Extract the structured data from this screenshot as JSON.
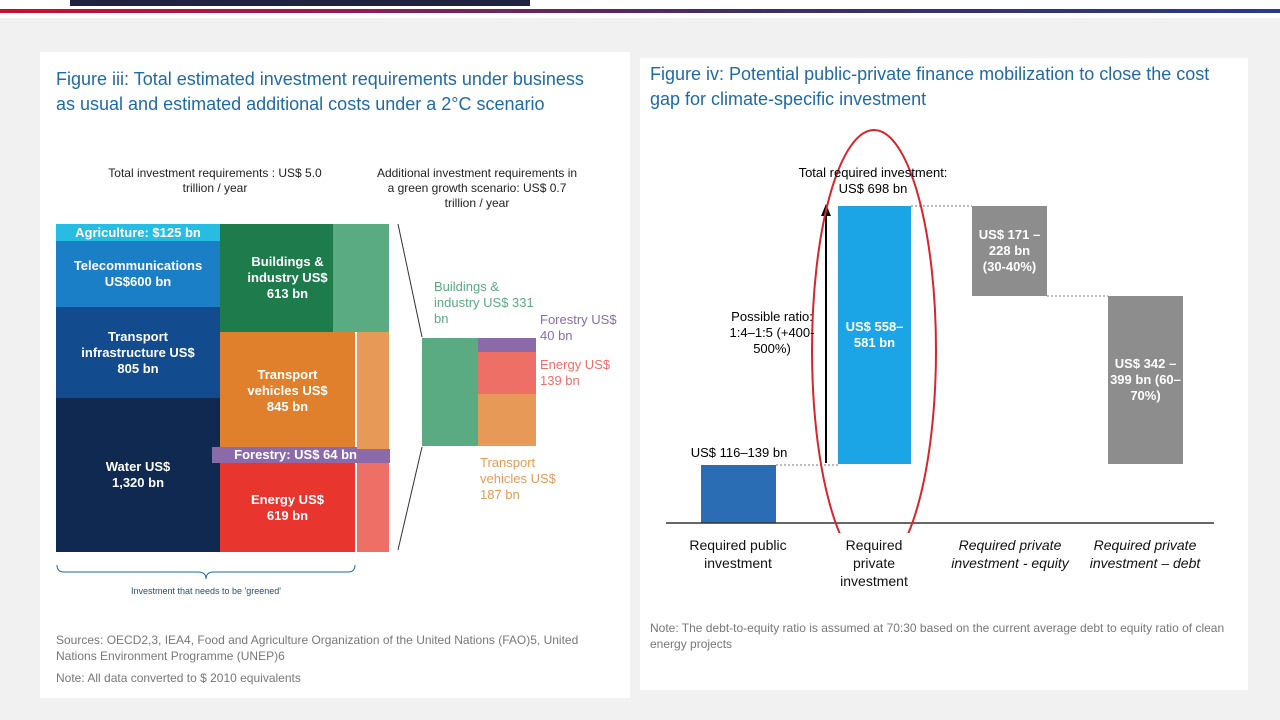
{
  "colors": {
    "title_blue": "#1f6aa6",
    "agriculture": "#27bde3",
    "telecom": "#1a7fc7",
    "transport_infra": "#124b8e",
    "water": "#0f2950",
    "buildings": "#1e7c4c",
    "transport_vehicles": "#e07f2c",
    "forestry": "#8b6aaa",
    "energy": "#e8352e",
    "green_light": "#5aaa82",
    "vehicles_light": "#e79a57",
    "energy_light": "#ee6f66",
    "public_blue": "#2a6db5",
    "private_blue": "#1ba5e6",
    "grey": "#8d8d8d",
    "highlight_red": "#d7262b"
  },
  "chart_data": [
    {
      "type": "stacked bar",
      "title": "Figure iii: Total estimated investment requirements under business as usual and estimated additional costs under a 2°C scenario",
      "header_left": "Total investment requirements : US$ 5.0 trillion / year",
      "header_right": "Additional investment requirements in a green growth scenario: US$ 0.7 trillion / year",
      "left_stack": [
        {
          "label": "Agriculture: $125 bn",
          "value": 125
        },
        {
          "label": "Telecommunications US$600 bn",
          "value": 600
        },
        {
          "label": "Transport infrastructure US$ 805 bn",
          "value": 805
        },
        {
          "label": "Water US$ 1,320 bn",
          "value": 1320
        }
      ],
      "middle_stack": [
        {
          "label": "Buildings & industry US$ 613 bn",
          "value": 613
        },
        {
          "label": "Transport vehicles US$ 845 bn",
          "value": 845
        },
        {
          "label": "Forestry: US$ 64 bn",
          "value": 64
        },
        {
          "label": "Energy US$ 619 bn",
          "value": 619
        }
      ],
      "additional_stack": [
        {
          "label": "Buildings & industry US$ 331 bn",
          "value": 331
        },
        {
          "label": "Forestry US$ 40 bn",
          "value": 40
        },
        {
          "label": "Energy US$ 139 bn",
          "value": 139
        },
        {
          "label": "Transport vehicles US$ 187 bn",
          "value": 187
        }
      ],
      "brace_label": "Investment that needs to be 'greened'",
      "total_bau_trillion": 5.0,
      "total_additional_trillion": 0.7
    },
    {
      "type": "waterfall",
      "title": "Figure iv: Potential public-private finance mobilization to close the cost gap for climate-specific investment",
      "total_label": "Total required investment: US$ 698 bn",
      "total_value": 698,
      "ratio_label": "Possible ratio: 1:4–1:5 (+400-500%)",
      "bars": [
        {
          "category": "Required public investment",
          "label": "US$ 116–139 bn",
          "low": 116,
          "high": 139
        },
        {
          "category": "Required private investment",
          "label": "US$ 558–581 bn",
          "low": 558,
          "high": 581
        },
        {
          "category": "Required private investment - equity",
          "label": "US$ 171 – 228 bn (30-40%)",
          "low": 171,
          "high": 228
        },
        {
          "category": "Required private investment – debt",
          "label": "US$ 342 – 399 bn (60–70%)",
          "low": 342,
          "high": 399
        }
      ]
    }
  ],
  "fig3": {
    "title": "Figure iii: Total estimated investment requirements under business as usual and estimated additional costs under a 2°C scenario",
    "header_left": "Total investment requirements : US$ 5.0 trillion / year",
    "header_right": "Additional investment requirements in a green growth scenario: US$ 0.7 trillion / year",
    "agriculture": "Agriculture: $125 bn",
    "telecom": "Telecommunications US$600 bn",
    "transport_infra": "Transport infrastructure US$ 805 bn",
    "water": "Water US$ 1,320 bn",
    "buildings": "Buildings & industry US$ 613 bn",
    "transport_vehicles": "Transport vehicles US$ 845 bn",
    "forestry": "Forestry: US$ 64 bn",
    "energy": "Energy US$ 619 bn",
    "add_buildings": "Buildings & industry US$ 331 bn",
    "add_forestry": "Forestry US$ 40 bn",
    "add_energy": "Energy US$ 139 bn",
    "add_vehicles": "Transport vehicles US$ 187 bn",
    "brace": "Investment that needs to be 'greened'",
    "sources": "Sources: OECD2,3, IEA4, Food and Agriculture Organization of the United Nations (FAO)5, United Nations Environment Programme (UNEP)6",
    "note": "Note: All data converted to $ 2010 equivalents"
  },
  "fig4": {
    "title": "Figure iv: Potential public-private finance mobilization to close the cost gap for climate-specific investment",
    "total": "Total required investment: US$ 698 bn",
    "ratio": "Possible ratio: 1:4–1:5 (+400-500%)",
    "public_value": "US$ 116–139 bn",
    "private_value": "US$ 558–581 bn",
    "equity_value": "US$ 171 – 228 bn (30-40%)",
    "debt_value": "US$ 342 – 399 bn (60–70%)",
    "cat_public": "Required public investment",
    "cat_private": "Required private investment",
    "cat_equity": "Required private investment - equity",
    "cat_debt": "Required private investment – debt",
    "note": "Note: The debt-to-equity ratio is assumed at 70:30 based on the current average debt to equity ratio of clean energy projects"
  }
}
